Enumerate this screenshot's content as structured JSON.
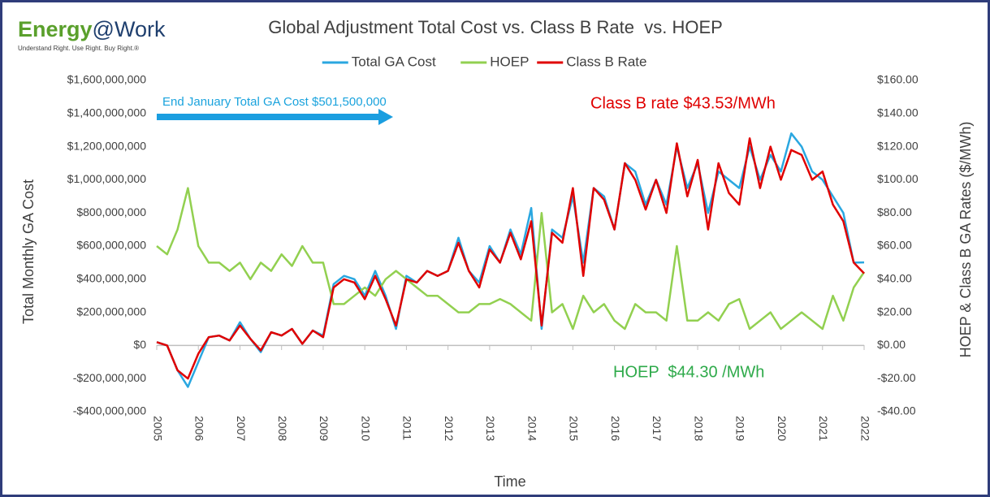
{
  "logo": {
    "brand": "Energy",
    "suffix": "@Work",
    "tagline": "Understand Right. Use Right. Buy Right.®"
  },
  "chart_data": {
    "type": "line",
    "title": "Global Adjustment Total Cost vs. Class B Rate  vs. HOEP",
    "x_label": "Time",
    "y_label": "Total Monthly GA Cost",
    "y2_label": "HOEP & Class B GA Rates ($/MWh)",
    "annotations": [
      "End January Total GA Cost $501,500,000",
      "Class B rate $43.53/MWh",
      "HOEP  $44.30 /MWh"
    ],
    "x": [
      2005,
      2005.25,
      2005.5,
      2005.75,
      2006,
      2006.25,
      2006.5,
      2006.75,
      2007,
      2007.25,
      2007.5,
      2007.75,
      2008,
      2008.25,
      2008.5,
      2008.75,
      2009,
      2009.25,
      2009.5,
      2009.75,
      2010,
      2010.25,
      2010.5,
      2010.75,
      2011,
      2011.25,
      2011.5,
      2011.75,
      2012,
      2012.25,
      2012.5,
      2012.75,
      2013,
      2013.25,
      2013.5,
      2013.75,
      2014,
      2014.25,
      2014.5,
      2014.75,
      2015,
      2015.25,
      2015.5,
      2015.75,
      2016,
      2016.25,
      2016.5,
      2016.75,
      2017,
      2017.25,
      2017.5,
      2017.75,
      2018,
      2018.25,
      2018.5,
      2018.75,
      2019,
      2019.25,
      2019.5,
      2019.75,
      2020,
      2020.25,
      2020.5,
      2020.75,
      2021,
      2021.25,
      2021.5,
      2021.75,
      2022
    ],
    "series": [
      {
        "name": "Total GA Cost",
        "color": "#2aa7e0",
        "values": [
          20000000,
          0,
          -150000000,
          -250000000,
          -100000000,
          50000000,
          60000000,
          30000000,
          140000000,
          40000000,
          -40000000,
          80000000,
          60000000,
          100000000,
          10000000,
          90000000,
          60000000,
          370000000,
          420000000,
          400000000,
          300000000,
          450000000,
          300000000,
          100000000,
          420000000,
          380000000,
          450000000,
          420000000,
          450000000,
          650000000,
          450000000,
          380000000,
          600000000,
          500000000,
          700000000,
          550000000,
          830000000,
          100000000,
          700000000,
          650000000,
          900000000,
          500000000,
          950000000,
          900000000,
          700000000,
          1100000000,
          1050000000,
          850000000,
          1000000000,
          850000000,
          1200000000,
          950000000,
          1100000000,
          800000000,
          1050000000,
          1000000000,
          950000000,
          1200000000,
          1000000000,
          1150000000,
          1050000000,
          1280000000,
          1200000000,
          1050000000,
          1000000000,
          900000000,
          800000000,
          500000000,
          501500000
        ]
      },
      {
        "name": "HOEP",
        "color": "#92d050",
        "axis": "y2",
        "values": [
          60,
          55,
          70,
          95,
          60,
          50,
          50,
          45,
          50,
          40,
          50,
          45,
          55,
          48,
          60,
          50,
          50,
          25,
          25,
          30,
          35,
          30,
          40,
          45,
          40,
          35,
          30,
          30,
          25,
          20,
          20,
          25,
          25,
          28,
          25,
          20,
          15,
          80,
          20,
          25,
          10,
          30,
          20,
          25,
          15,
          10,
          25,
          20,
          20,
          15,
          60,
          15,
          15,
          20,
          15,
          25,
          28,
          10,
          15,
          20,
          10,
          15,
          20,
          15,
          10,
          30,
          15,
          35,
          44.3
        ]
      },
      {
        "name": "Class B Rate",
        "color": "#e00000",
        "axis": "y2",
        "values": [
          2,
          0,
          -15,
          -20,
          -5,
          5,
          6,
          3,
          12,
          4,
          -3,
          8,
          6,
          10,
          1,
          9,
          5,
          35,
          40,
          38,
          28,
          42,
          28,
          12,
          40,
          38,
          45,
          42,
          45,
          62,
          45,
          35,
          58,
          50,
          68,
          52,
          75,
          12,
          68,
          62,
          95,
          42,
          95,
          88,
          70,
          110,
          100,
          82,
          100,
          80,
          122,
          90,
          112,
          70,
          110,
          92,
          85,
          125,
          95,
          120,
          100,
          118,
          115,
          100,
          105,
          85,
          75,
          50,
          43.53
        ]
      }
    ],
    "xlim": [
      2005,
      2022
    ],
    "xticks": [
      2005,
      2006,
      2007,
      2008,
      2009,
      2010,
      2011,
      2012,
      2013,
      2014,
      2015,
      2016,
      2017,
      2018,
      2019,
      2020,
      2021,
      2022
    ],
    "ylim": [
      -400000000,
      1600000000
    ],
    "yticks": [
      {
        "value": -400000000,
        "label": "-$400,000,000"
      },
      {
        "value": -200000000,
        "label": "-$200,000,000"
      },
      {
        "value": 0,
        "label": "$0"
      },
      {
        "value": 200000000,
        "label": "$200,000,000"
      },
      {
        "value": 400000000,
        "label": "$400,000,000"
      },
      {
        "value": 600000000,
        "label": "$600,000,000"
      },
      {
        "value": 800000000,
        "label": "$800,000,000"
      },
      {
        "value": 1000000000,
        "label": "$1,000,000,000"
      },
      {
        "value": 1200000000,
        "label": "$1,200,000,000"
      },
      {
        "value": 1400000000,
        "label": "$1,400,000,000"
      },
      {
        "value": 1600000000,
        "label": "$1,600,000,000"
      }
    ],
    "y2lim": [
      -40,
      160
    ],
    "y2ticks": [
      {
        "value": -40,
        "label": "-$40.00"
      },
      {
        "value": -20,
        "label": "-$20.00"
      },
      {
        "value": 0,
        "label": "$0.00"
      },
      {
        "value": 20,
        "label": "$20.00"
      },
      {
        "value": 40,
        "label": "$40.00"
      },
      {
        "value": 60,
        "label": "$60.00"
      },
      {
        "value": 80,
        "label": "$80.00"
      },
      {
        "value": 100,
        "label": "$100.00"
      },
      {
        "value": 120,
        "label": "$120.00"
      },
      {
        "value": 140,
        "label": "$140.00"
      },
      {
        "value": 160,
        "label": "$160.00"
      }
    ],
    "legend": "top"
  }
}
